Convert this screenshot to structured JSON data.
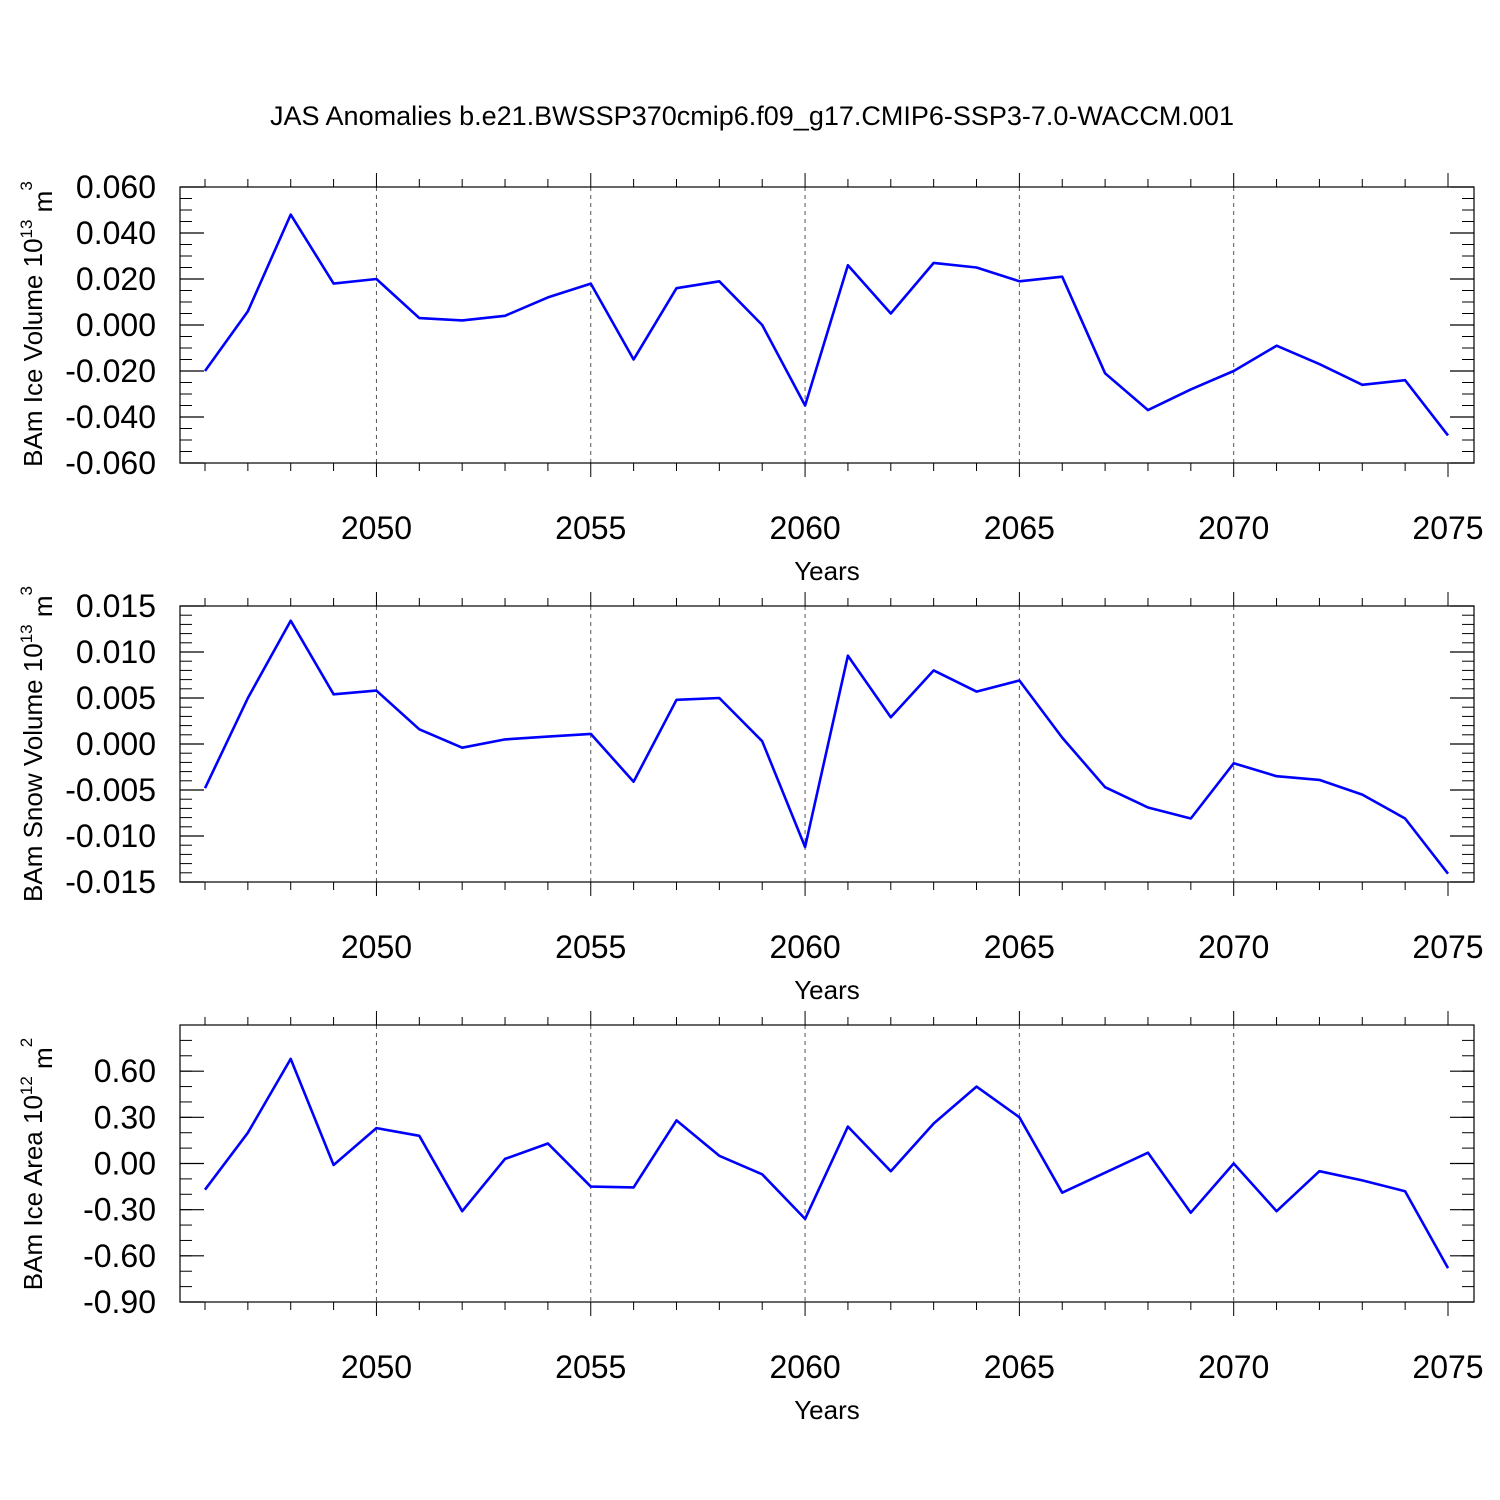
{
  "title": "JAS Anomalies b.e21.BWSSP370cmip6.f09_g17.CMIP6-SSP3-7.0-WACCM.001",
  "colors": {
    "series": "#0000ff",
    "axis": "#000000",
    "grid": "#555555"
  },
  "chart_data": [
    {
      "type": "line",
      "title": "JAS Anomalies b.e21.BWSSP370cmip6.f09_g17.CMIP6-SSP3-7.0-WACCM.001",
      "xlabel": "Years",
      "ylabel": {
        "text": "BAm Ice Volume 10",
        "exp": "13",
        "unit": " m",
        "unit_exp": "3"
      },
      "xlim": [
        2046,
        2075
      ],
      "ylim": [
        -0.06,
        0.06
      ],
      "x_ticks": [
        "2050",
        "2055",
        "2060",
        "2065",
        "2070",
        "2075"
      ],
      "y_ticks": [
        "-0.060",
        "-0.040",
        "-0.020",
        "0.000",
        "0.020",
        "0.040",
        "0.060"
      ],
      "y_tick_values": [
        -0.06,
        -0.04,
        -0.02,
        0.0,
        0.02,
        0.04,
        0.06
      ],
      "y_minor_step": 0.005,
      "grid": "vertical dashed at labeled years",
      "x": [
        2046,
        2047,
        2048,
        2049,
        2050,
        2051,
        2052,
        2053,
        2054,
        2055,
        2056,
        2057,
        2058,
        2059,
        2060,
        2061,
        2062,
        2063,
        2064,
        2065,
        2066,
        2067,
        2068,
        2069,
        2070,
        2071,
        2072,
        2073,
        2074,
        2075
      ],
      "series": [
        {
          "values": [
            -0.02,
            0.006,
            0.048,
            0.018,
            0.02,
            0.003,
            0.002,
            0.004,
            0.012,
            0.018,
            -0.015,
            0.016,
            0.019,
            0.0,
            -0.035,
            0.026,
            0.005,
            0.027,
            0.025,
            0.019,
            0.021,
            -0.021,
            -0.037,
            -0.028,
            -0.02,
            -0.009,
            -0.017,
            -0.026,
            -0.024,
            -0.048
          ]
        }
      ]
    },
    {
      "type": "line",
      "xlabel": "Years",
      "ylabel": {
        "text": "BAm Snow Volume 10",
        "exp": "13",
        "unit": " m",
        "unit_exp": "3"
      },
      "xlim": [
        2046,
        2075
      ],
      "ylim": [
        -0.015,
        0.015
      ],
      "x_ticks": [
        "2050",
        "2055",
        "2060",
        "2065",
        "2070",
        "2075"
      ],
      "y_ticks": [
        "-0.015",
        "-0.010",
        "-0.005",
        "0.000",
        "0.005",
        "0.010",
        "0.015"
      ],
      "y_tick_values": [
        -0.015,
        -0.01,
        -0.005,
        0.0,
        0.005,
        0.01,
        0.015
      ],
      "y_minor_step": 0.001,
      "grid": "vertical dashed at labeled years",
      "x": [
        2046,
        2047,
        2048,
        2049,
        2050,
        2051,
        2052,
        2053,
        2054,
        2055,
        2056,
        2057,
        2058,
        2059,
        2060,
        2061,
        2062,
        2063,
        2064,
        2065,
        2066,
        2067,
        2068,
        2069,
        2070,
        2071,
        2072,
        2073,
        2074,
        2075
      ],
      "series": [
        {
          "values": [
            -0.0048,
            0.005,
            0.0134,
            0.0054,
            0.0058,
            0.0016,
            -0.0004,
            0.0005,
            0.0008,
            0.0011,
            -0.0041,
            0.0048,
            0.005,
            0.0003,
            -0.0112,
            0.0096,
            0.0029,
            0.008,
            0.0057,
            0.0069,
            0.0007,
            -0.0047,
            -0.0069,
            -0.0081,
            -0.0021,
            -0.0035,
            -0.0039,
            -0.0055,
            -0.0081,
            -0.0141
          ]
        }
      ]
    },
    {
      "type": "line",
      "xlabel": "Years",
      "ylabel": {
        "text": "BAm Ice Area 10",
        "exp": "12",
        "unit": " m",
        "unit_exp": "2"
      },
      "xlim": [
        2046,
        2075
      ],
      "ylim": [
        -0.9,
        0.9
      ],
      "x_ticks": [
        "2050",
        "2055",
        "2060",
        "2065",
        "2070",
        "2075"
      ],
      "y_ticks": [
        "-0.90",
        "-0.60",
        "-0.30",
        "0.00",
        "0.30",
        "0.60"
      ],
      "y_tick_values": [
        -0.9,
        -0.6,
        -0.3,
        0.0,
        0.3,
        0.6
      ],
      "y_minor_step": 0.1,
      "grid": "vertical dashed at labeled years",
      "x": [
        2046,
        2047,
        2048,
        2049,
        2050,
        2051,
        2052,
        2053,
        2054,
        2055,
        2056,
        2057,
        2058,
        2059,
        2060,
        2061,
        2062,
        2063,
        2064,
        2065,
        2066,
        2067,
        2068,
        2069,
        2070,
        2071,
        2072,
        2073,
        2074,
        2075
      ],
      "series": [
        {
          "values": [
            -0.17,
            0.2,
            0.68,
            -0.01,
            0.23,
            0.18,
            -0.31,
            0.03,
            0.13,
            -0.15,
            -0.155,
            0.28,
            0.05,
            -0.07,
            -0.36,
            0.24,
            -0.05,
            0.26,
            0.5,
            0.3,
            -0.19,
            -0.06,
            0.07,
            -0.32,
            0.0,
            -0.31,
            -0.05,
            -0.11,
            -0.18,
            -0.68
          ]
        }
      ]
    }
  ]
}
